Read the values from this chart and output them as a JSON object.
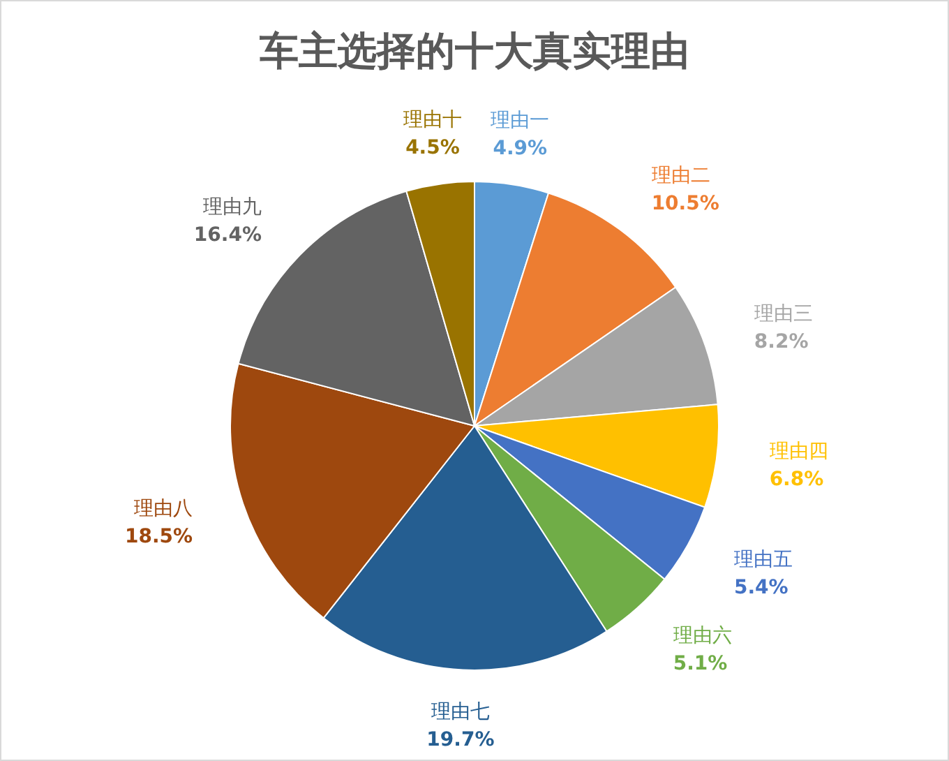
{
  "chart_data": {
    "type": "pie",
    "title": "车主选择的十大真实理由",
    "categories": [
      "理由一",
      "理由二",
      "理由三",
      "理由四",
      "理由五",
      "理由六",
      "理由七",
      "理由八",
      "理由九",
      "理由十"
    ],
    "values": [
      4.9,
      10.5,
      8.2,
      6.8,
      5.4,
      5.1,
      19.7,
      18.5,
      16.4,
      4.5
    ],
    "colors": [
      "#5b9bd5",
      "#ed7d31",
      "#a5a5a5",
      "#ffc000",
      "#4472c4",
      "#70ad47",
      "#255e91",
      "#9e480e",
      "#636363",
      "#997300"
    ],
    "value_labels": [
      "4.9%",
      "10.5%",
      "8.2%",
      "6.8%",
      "5.4%",
      "5.1%",
      "19.7%",
      "18.5%",
      "16.4%",
      "4.5%"
    ]
  }
}
